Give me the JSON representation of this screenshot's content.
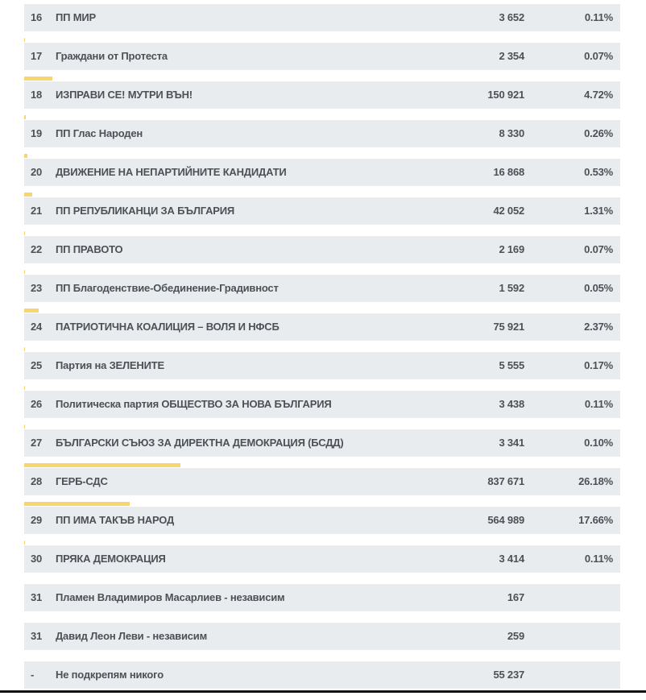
{
  "colors": {
    "bar": "#f8d66d",
    "row_bg": "#e9ecef",
    "text": "#4a5157"
  },
  "rows": [
    {
      "num": "16",
      "name": "ПП МИР",
      "votes": "3 652",
      "pct": "0.11%",
      "share": 0.11
    },
    {
      "num": "17",
      "name": "Граждани от Протеста",
      "votes": "2 354",
      "pct": "0.07%",
      "share": 0.07
    },
    {
      "num": "18",
      "name": "ИЗПРАВИ СЕ! МУТРИ ВЪН!",
      "votes": "150 921",
      "pct": "4.72%",
      "share": 4.72
    },
    {
      "num": "19",
      "name": "ПП Глас Народен",
      "votes": "8 330",
      "pct": "0.26%",
      "share": 0.26
    },
    {
      "num": "20",
      "name": "ДВИЖЕНИЕ НА НЕПАРТИЙНИТЕ КАНДИДАТИ",
      "votes": "16 868",
      "pct": "0.53%",
      "share": 0.53
    },
    {
      "num": "21",
      "name": "ПП РЕПУБЛИКАНЦИ ЗА БЪЛГАРИЯ",
      "votes": "42 052",
      "pct": "1.31%",
      "share": 1.31
    },
    {
      "num": "22",
      "name": "ПП ПРАВОТО",
      "votes": "2 169",
      "pct": "0.07%",
      "share": 0.07
    },
    {
      "num": "23",
      "name": "ПП Благоденствие-Обединение-Градивност",
      "votes": "1 592",
      "pct": "0.05%",
      "share": 0.05
    },
    {
      "num": "24",
      "name": "ПАТРИОТИЧНА КОАЛИЦИЯ – ВОЛЯ И НФСБ",
      "votes": "75 921",
      "pct": "2.37%",
      "share": 2.37
    },
    {
      "num": "25",
      "name": "Партия на ЗЕЛЕНИТЕ",
      "votes": "5 555",
      "pct": "0.17%",
      "share": 0.17
    },
    {
      "num": "26",
      "name": "Политическа партия  ОБЩЕСТВО ЗА НОВА БЪЛГАРИЯ",
      "votes": "3 438",
      "pct": "0.11%",
      "share": 0.11
    },
    {
      "num": "27",
      "name": "БЪЛГАРСКИ СЪЮЗ ЗА ДИРЕКТНА ДЕМОКРАЦИЯ (БСДД)",
      "votes": "3 341",
      "pct": "0.10%",
      "share": 0.1
    },
    {
      "num": "28",
      "name": "ГЕРБ-СДС",
      "votes": "837 671",
      "pct": "26.18%",
      "share": 26.18
    },
    {
      "num": "29",
      "name": "ПП ИМА ТАКЪВ НАРОД",
      "votes": "564 989",
      "pct": "17.66%",
      "share": 17.66
    },
    {
      "num": "30",
      "name": "ПРЯКА ДЕМОКРАЦИЯ",
      "votes": "3 414",
      "pct": "0.11%",
      "share": 0.11
    },
    {
      "num": "31",
      "name": "Пламен Владимиров Масарлиев - независим",
      "votes": "167",
      "pct": "",
      "share": 0
    },
    {
      "num": "31",
      "name": "Давид Леон Леви - независим",
      "votes": "259",
      "pct": "",
      "share": 0
    },
    {
      "num": "-",
      "name": "Не подкрепям никого",
      "votes": "55 237",
      "pct": "",
      "share": 0
    }
  ]
}
